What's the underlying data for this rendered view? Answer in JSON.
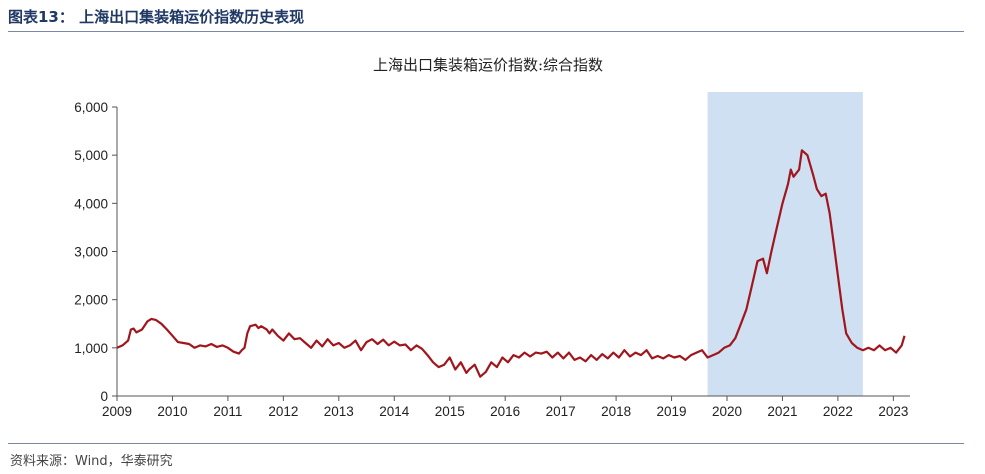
{
  "figure_title": "图表13：  上海出口集装箱运价指数历史表现",
  "source": "资料来源：Wind，华泰研究",
  "colors": {
    "line": "#a0161c",
    "highlight": "#cfe0f3",
    "axis": "#555555"
  },
  "chart_data": {
    "type": "line",
    "title": "上海出口集装箱运价指数:综合指数",
    "xlabel": "",
    "ylabel": "",
    "xlim": [
      2009,
      2023.3
    ],
    "ylim": [
      0,
      6000
    ],
    "x_ticks": [
      "2009",
      "2010",
      "2011",
      "2012",
      "2013",
      "2014",
      "2015",
      "2016",
      "2017",
      "2018",
      "2019",
      "2020",
      "2021",
      "2022",
      "2023"
    ],
    "y_ticks": [
      "0",
      "1,000",
      "2,000",
      "3,000",
      "4,000",
      "5,000",
      "6,000"
    ],
    "highlight_range": [
      2019.65,
      2022.45
    ],
    "series": [
      {
        "x": [
          2009.0,
          2009.1,
          2009.2,
          2009.25,
          2009.3,
          2009.35,
          2009.45,
          2009.55,
          2009.62,
          2009.7,
          2009.8,
          2009.9,
          2010.0,
          2010.1,
          2010.2,
          2010.3,
          2010.4,
          2010.5,
          2010.6,
          2010.7,
          2010.8,
          2010.9,
          2011.0,
          2011.1,
          2011.2,
          2011.25,
          2011.3,
          2011.35,
          2011.4,
          2011.5,
          2011.55,
          2011.6,
          2011.7,
          2011.75,
          2011.8,
          2011.9,
          2012.0,
          2012.1,
          2012.2,
          2012.3,
          2012.4,
          2012.5,
          2012.6,
          2012.7,
          2012.8,
          2012.9,
          2013.0,
          2013.1,
          2013.2,
          2013.3,
          2013.4,
          2013.5,
          2013.6,
          2013.7,
          2013.8,
          2013.9,
          2014.0,
          2014.1,
          2014.2,
          2014.3,
          2014.4,
          2014.5,
          2014.6,
          2014.7,
          2014.8,
          2014.9,
          2015.0,
          2015.1,
          2015.2,
          2015.3,
          2015.35,
          2015.45,
          2015.55,
          2015.65,
          2015.75,
          2015.85,
          2015.95,
          2016.05,
          2016.15,
          2016.25,
          2016.35,
          2016.45,
          2016.55,
          2016.65,
          2016.75,
          2016.85,
          2016.95,
          2017.05,
          2017.15,
          2017.25,
          2017.35,
          2017.45,
          2017.55,
          2017.65,
          2017.75,
          2017.85,
          2017.95,
          2018.05,
          2018.15,
          2018.25,
          2018.35,
          2018.45,
          2018.55,
          2018.65,
          2018.75,
          2018.85,
          2018.95,
          2019.05,
          2019.15,
          2019.25,
          2019.35,
          2019.45,
          2019.55,
          2019.65,
          2019.75,
          2019.85,
          2019.95,
          2020.05,
          2020.15,
          2020.25,
          2020.35,
          2020.45,
          2020.55,
          2020.65,
          2020.72,
          2020.8,
          2020.9,
          2021.0,
          2021.1,
          2021.15,
          2021.2,
          2021.3,
          2021.35,
          2021.45,
          2021.55,
          2021.62,
          2021.7,
          2021.78,
          2021.85,
          2021.92,
          2022.0,
          2022.08,
          2022.15,
          2022.25,
          2022.35,
          2022.45,
          2022.55,
          2022.65,
          2022.75,
          2022.85,
          2022.95,
          2023.05,
          2023.15,
          2023.2
        ],
        "values": [
          1000,
          1050,
          1150,
          1380,
          1400,
          1320,
          1380,
          1550,
          1600,
          1580,
          1500,
          1380,
          1250,
          1120,
          1100,
          1080,
          1000,
          1050,
          1030,
          1080,
          1020,
          1050,
          1000,
          920,
          880,
          950,
          1000,
          1300,
          1450,
          1480,
          1410,
          1450,
          1380,
          1300,
          1380,
          1250,
          1150,
          1300,
          1180,
          1200,
          1100,
          1000,
          1150,
          1030,
          1180,
          1050,
          1100,
          1000,
          1050,
          1150,
          950,
          1120,
          1180,
          1080,
          1170,
          1050,
          1130,
          1050,
          1070,
          950,
          1050,
          980,
          850,
          700,
          600,
          650,
          800,
          550,
          700,
          480,
          550,
          650,
          400,
          500,
          700,
          600,
          800,
          700,
          850,
          800,
          900,
          820,
          900,
          880,
          920,
          800,
          900,
          780,
          900,
          750,
          800,
          720,
          850,
          750,
          870,
          780,
          900,
          800,
          950,
          820,
          900,
          850,
          950,
          780,
          830,
          780,
          850,
          800,
          830,
          750,
          850,
          900,
          950,
          800,
          850,
          900,
          1000,
          1050,
          1200,
          1500,
          1800,
          2300,
          2800,
          2850,
          2550,
          3000,
          3500,
          4000,
          4400,
          4700,
          4550,
          4700,
          5100,
          5000,
          4600,
          4300,
          4150,
          4200,
          3800,
          3200,
          2500,
          1800,
          1300,
          1100,
          1000,
          950,
          1000,
          950,
          1050,
          950,
          1000,
          900,
          1050,
          1250
        ]
      }
    ]
  }
}
